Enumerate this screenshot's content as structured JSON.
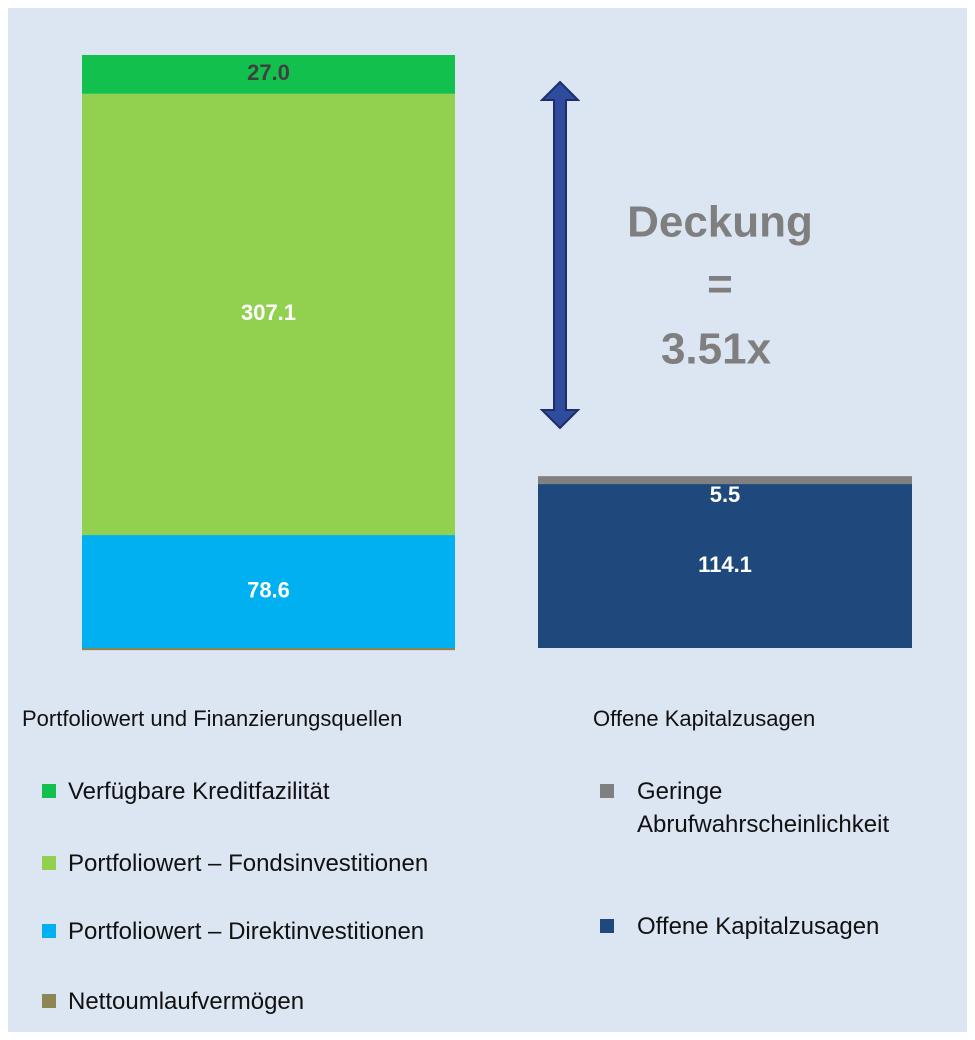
{
  "chart_data": {
    "type": "bar",
    "stacked": true,
    "categories": [
      "Portfoliowert und Finanzierungsquellen",
      "Offene Kapitalzusagen"
    ],
    "series": [
      {
        "name": "Verfügbare Kreditfazilität",
        "color": "#12c04e",
        "label_color": "#404040",
        "values": [
          27.0,
          null
        ],
        "value_labels": [
          "27.0",
          null
        ]
      },
      {
        "name": "Portfoliowert – Fondsinvestitionen",
        "color": "#92d050",
        "label_color": "#ffffff",
        "values": [
          307.1,
          null
        ]
      },
      {
        "name": "Portfoliowert – Direktinvestitionen",
        "color": "#00b0f0",
        "label_color": "#ffffff",
        "values": [
          78.6,
          null
        ]
      },
      {
        "name": "Nettoumlaufvermögen",
        "color": "#8c8656",
        "label_color": "#ffffff",
        "values": [
          -1.5,
          null
        ]
      },
      {
        "name": "Geringe Abrufwahrscheinlichkeit",
        "color": "#808080",
        "label_color": "#ffffff",
        "values": [
          null,
          5.5
        ]
      },
      {
        "name": "Offene Kapitalzusagen",
        "color": "#1f497d",
        "label_color": "#ffffff",
        "values": [
          null,
          114.1
        ]
      }
    ],
    "annotation": [
      "Deckung",
      "=",
      "3.51x"
    ]
  }
}
